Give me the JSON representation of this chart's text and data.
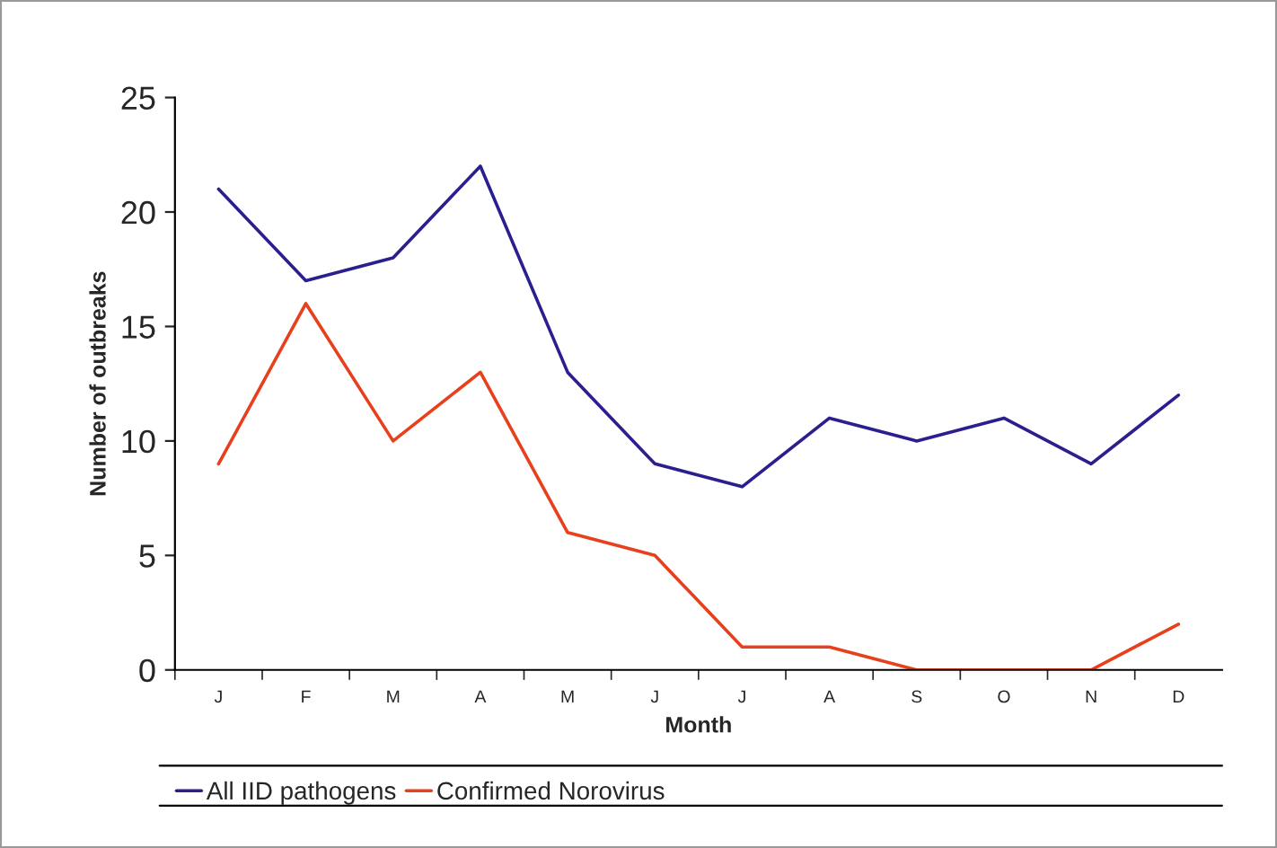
{
  "chart_data": {
    "type": "line",
    "xlabel": "Month",
    "ylabel": "Number of outbreaks",
    "categories": [
      "J",
      "F",
      "M",
      "A",
      "M",
      "J",
      "J",
      "A",
      "S",
      "O",
      "N",
      "D"
    ],
    "series": [
      {
        "name": "All IID pathogens",
        "color": "#2b1f8f",
        "values": [
          21,
          17,
          18,
          22,
          13,
          9,
          8,
          11,
          10,
          11,
          9,
          12
        ]
      },
      {
        "name": "Confirmed Norovirus",
        "color": "#e8401c",
        "values": [
          9,
          16,
          10,
          13,
          6,
          5,
          1,
          1,
          0,
          0,
          0,
          2
        ]
      }
    ],
    "ylim": [
      0,
      25
    ],
    "yticks": [
      0,
      5,
      10,
      15,
      20,
      25
    ],
    "grid": false,
    "legend": "bottom",
    "marker": "none",
    "line_style": "solid"
  }
}
